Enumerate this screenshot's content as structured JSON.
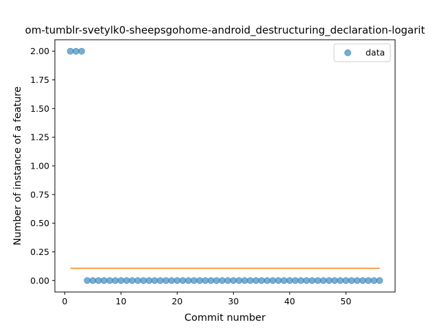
{
  "chart_data": {
    "type": "scatter",
    "title": "om-tumblr-svetylk0-sheepsgohome-android_destructuring_declaration-logarit",
    "xlabel": "Commit number",
    "ylabel": "Number of instance of a feature",
    "xlim": [
      -1.75,
      58.75
    ],
    "ylim": [
      -0.1,
      2.1
    ],
    "xticks": [
      0,
      10,
      20,
      30,
      40,
      50
    ],
    "yticks": [
      0.0,
      0.25,
      0.5,
      0.75,
      1.0,
      1.25,
      1.5,
      1.75,
      2.0
    ],
    "xtick_labels": [
      "0",
      "10",
      "20",
      "30",
      "40",
      "50"
    ],
    "ytick_labels": [
      "0.00",
      "0.25",
      "0.50",
      "0.75",
      "1.00",
      "1.25",
      "1.50",
      "1.75",
      "2.00"
    ],
    "series": [
      {
        "name": "data",
        "kind": "scatter",
        "color": "#1f77b4",
        "x": [
          1,
          2,
          3,
          4,
          5,
          6,
          7,
          8,
          9,
          10,
          11,
          12,
          13,
          14,
          15,
          16,
          17,
          18,
          19,
          20,
          21,
          22,
          23,
          24,
          25,
          26,
          27,
          28,
          29,
          30,
          31,
          32,
          33,
          34,
          35,
          36,
          37,
          38,
          39,
          40,
          41,
          42,
          43,
          44,
          45,
          46,
          47,
          48,
          49,
          50,
          51,
          52,
          53,
          54,
          55,
          56
        ],
        "y": [
          2,
          2,
          2,
          0,
          0,
          0,
          0,
          0,
          0,
          0,
          0,
          0,
          0,
          0,
          0,
          0,
          0,
          0,
          0,
          0,
          0,
          0,
          0,
          0,
          0,
          0,
          0,
          0,
          0,
          0,
          0,
          0,
          0,
          0,
          0,
          0,
          0,
          0,
          0,
          0,
          0,
          0,
          0,
          0,
          0,
          0,
          0,
          0,
          0,
          0,
          0,
          0,
          0,
          0,
          0,
          0
        ]
      },
      {
        "kind": "line",
        "color": "#ff7f0e",
        "x": [
          1,
          56
        ],
        "y": [
          0.107,
          0.107
        ]
      }
    ],
    "legend": {
      "position": "top-right",
      "entries": [
        "data"
      ]
    },
    "grid": false
  }
}
